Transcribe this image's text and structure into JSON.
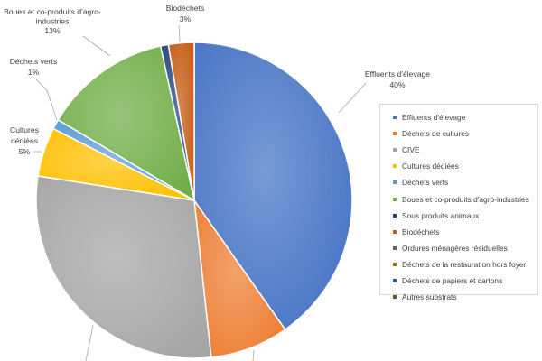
{
  "chart_data": {
    "type": "pie",
    "title": "",
    "legend_position": "right",
    "slices": [
      {
        "name": "Effluents d'élevage",
        "value": 40,
        "color": "#4472c4",
        "label_name": "Effluents d'élevage",
        "label_value": "40%"
      },
      {
        "name": "Déchets de cultures",
        "value": 8,
        "color": "#ed7d31",
        "label_name": "",
        "label_value": ""
      },
      {
        "name": "CIVE",
        "value": 29,
        "color": "#a5a5a5",
        "label_name": "",
        "label_value": ""
      },
      {
        "name": "Cultures dédiées",
        "value": 5,
        "color": "#ffc000",
        "label_name": "Cultures dédiées",
        "label_value": "5%"
      },
      {
        "name": "Déchets verts",
        "value": 1,
        "color": "#5b9bd5",
        "label_name": "Déchets verts",
        "label_value": "1%"
      },
      {
        "name": "Boues et co-produits d'agro-industries",
        "value": 13,
        "color": "#70ad47",
        "label_name": "Boues et co-produits d'agro-industries",
        "label_value": "13%"
      },
      {
        "name": "Sous produits animaux",
        "value": 0.8,
        "color": "#264478",
        "label_name": "",
        "label_value": ""
      },
      {
        "name": "Biodéchets",
        "value": 2.6,
        "color": "#c55a11",
        "label_name": "Biodéchets",
        "label_value": "3%"
      },
      {
        "name": "Ordures ménagères résiduelles",
        "value": 0,
        "color": "#636363",
        "label_name": "",
        "label_value": ""
      },
      {
        "name": "Déchets de la restauration hors foyer",
        "value": 0,
        "color": "#997300",
        "label_name": "",
        "label_value": ""
      },
      {
        "name": "Déchets de papiers et cartons",
        "value": 0,
        "color": "#255e91",
        "label_name": "",
        "label_value": ""
      },
      {
        "name": "Autres substrats",
        "value": 0,
        "color": "#43682b",
        "label_name": "",
        "label_value": ""
      }
    ]
  }
}
